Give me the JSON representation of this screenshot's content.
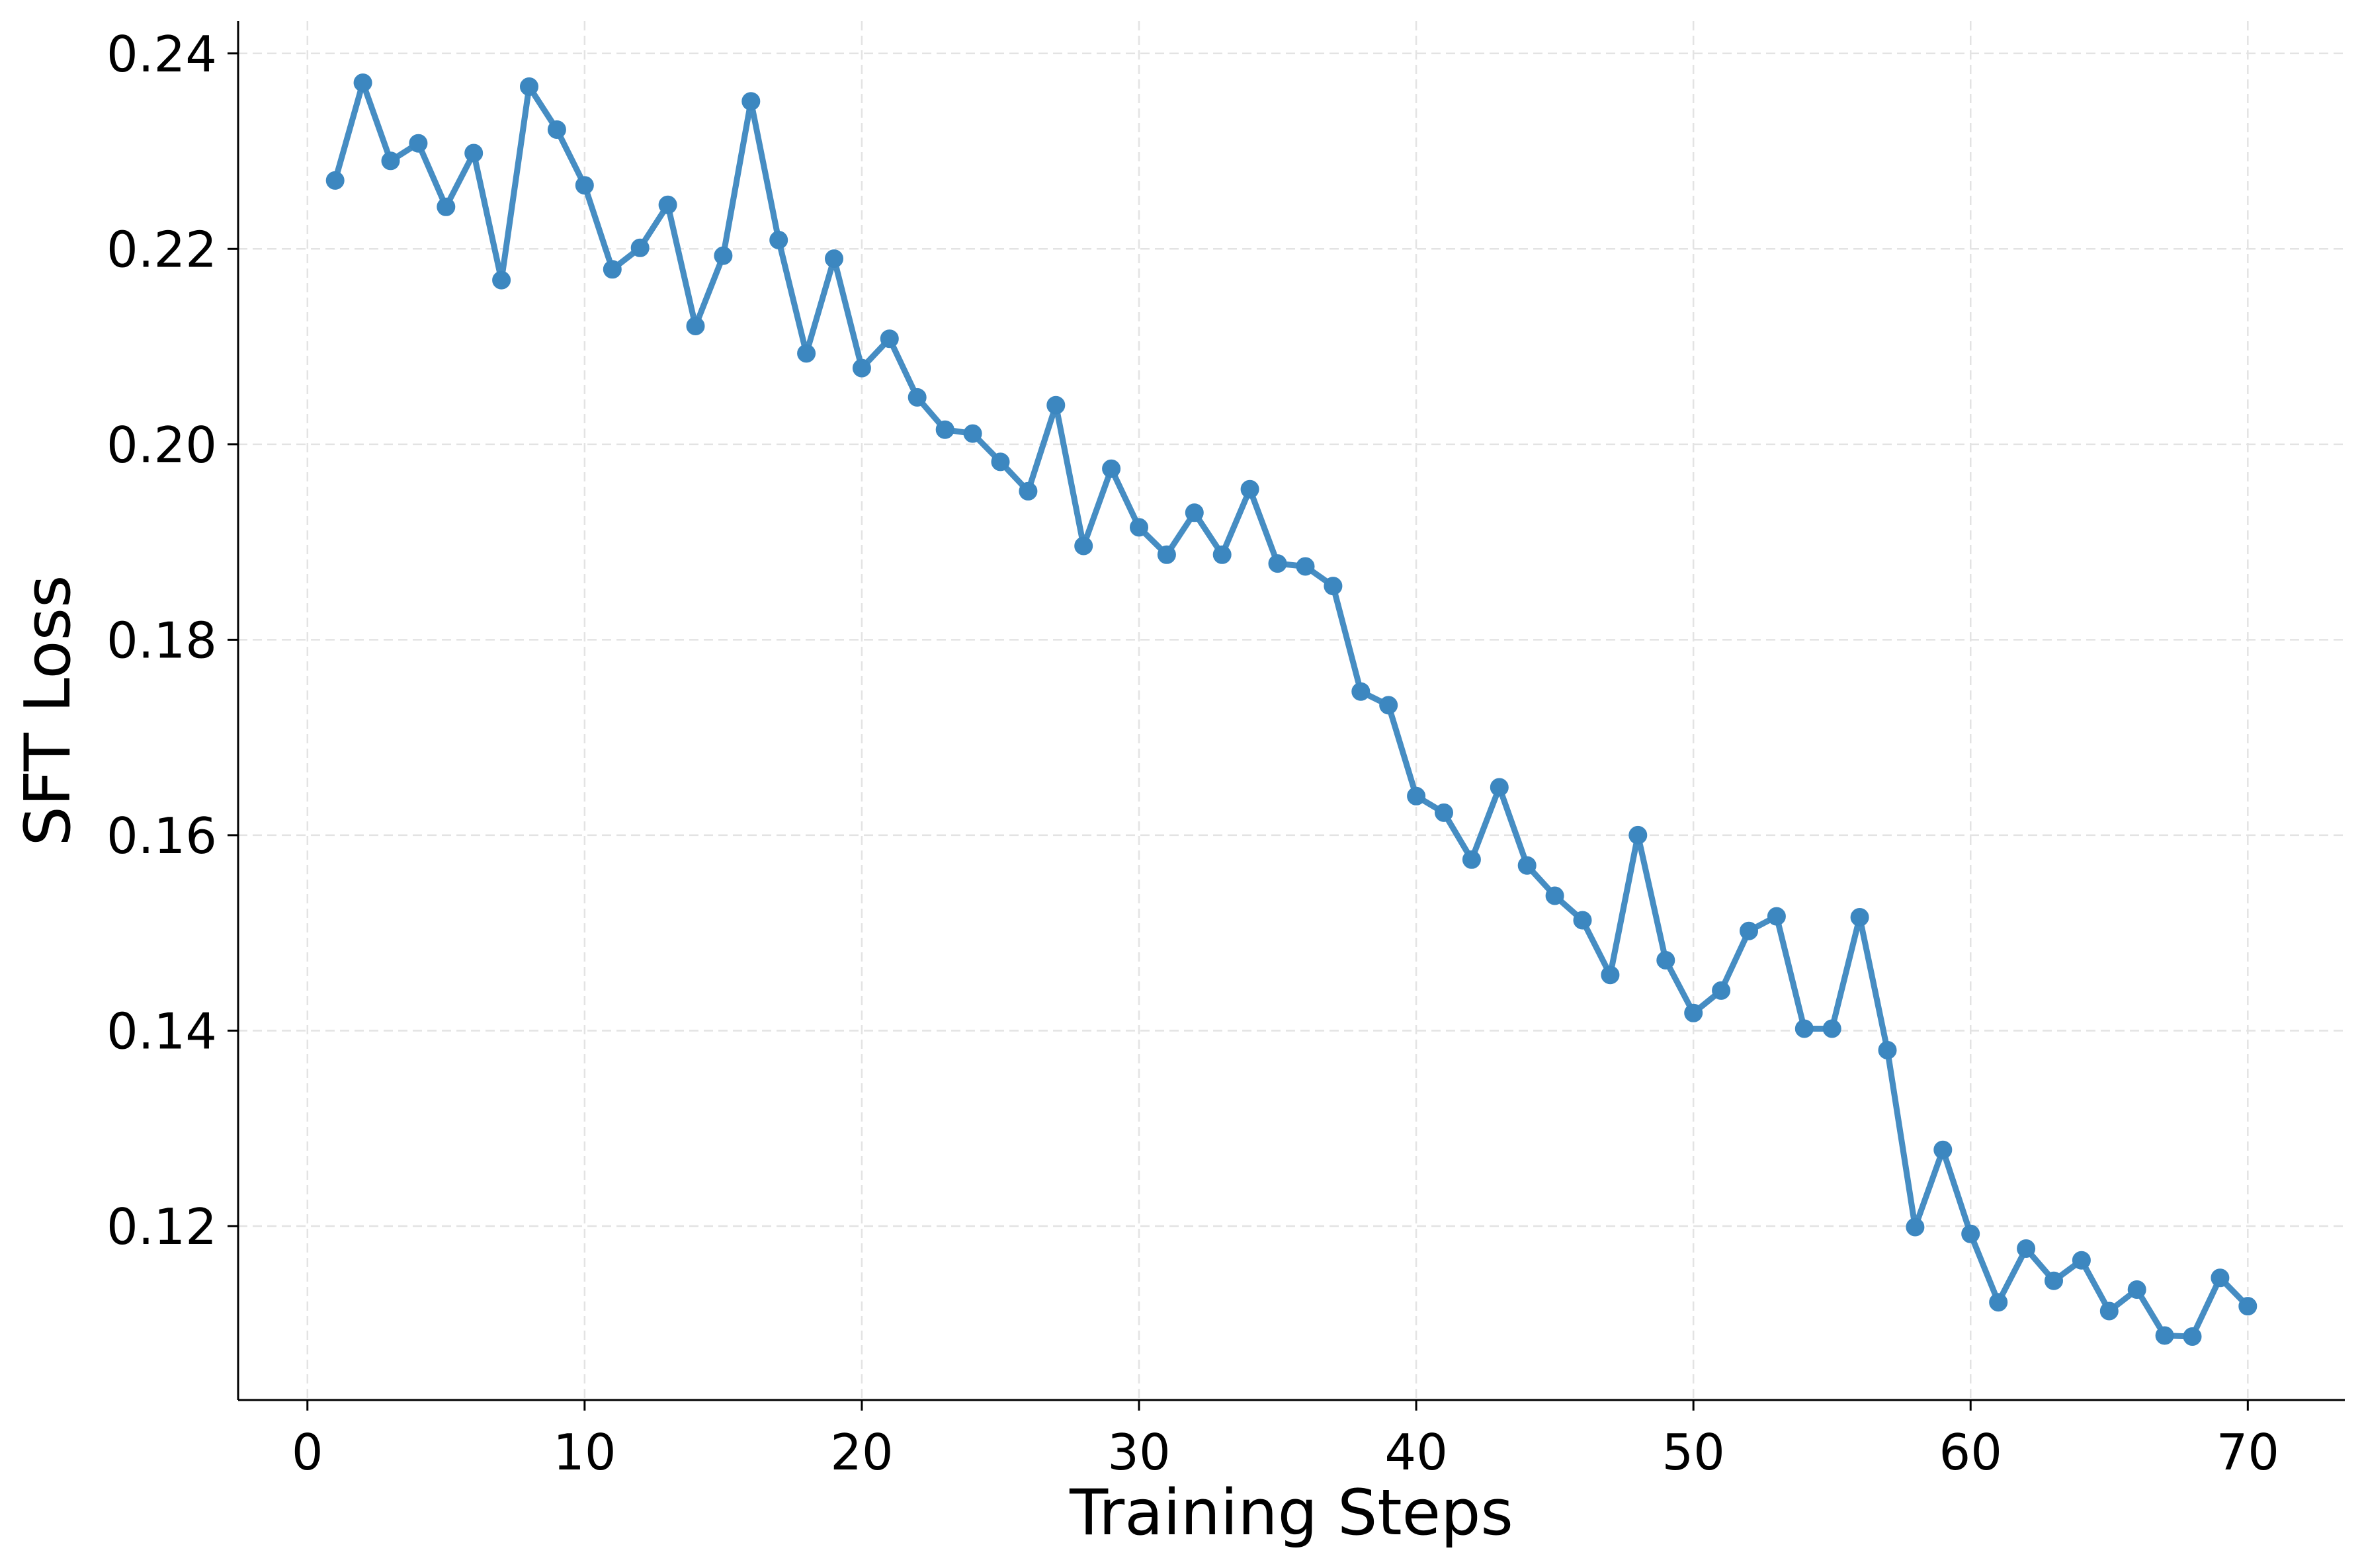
{
  "chart_data": {
    "type": "line",
    "title": "",
    "xlabel": "Training Steps",
    "ylabel": "SFT Loss",
    "xlim": [
      -2.5,
      73.5
    ],
    "ylim": [
      0.1022,
      0.2433
    ],
    "xticks": [
      0,
      10,
      20,
      30,
      40,
      50,
      60,
      70
    ],
    "xtick_labels": [
      "0",
      "10",
      "20",
      "30",
      "40",
      "50",
      "60",
      "70"
    ],
    "yticks": [
      0.12,
      0.14,
      0.16,
      0.18,
      0.2,
      0.22,
      0.24
    ],
    "ytick_labels": [
      "0.12",
      "0.14",
      "0.16",
      "0.18",
      "0.20",
      "0.22",
      "0.24"
    ],
    "grid": true,
    "series": [
      {
        "color": "#3c87c0",
        "marker": "circle",
        "x": [
          1,
          2,
          3,
          4,
          5,
          6,
          7,
          8,
          9,
          10,
          11,
          12,
          13,
          14,
          15,
          16,
          17,
          18,
          19,
          20,
          21,
          22,
          23,
          24,
          25,
          26,
          27,
          28,
          29,
          30,
          31,
          32,
          33,
          34,
          35,
          36,
          37,
          38,
          39,
          40,
          41,
          42,
          43,
          44,
          45,
          46,
          47,
          48,
          49,
          50,
          51,
          52,
          53,
          54,
          55,
          56,
          57,
          58,
          59,
          60,
          61,
          62,
          63,
          64,
          65,
          66,
          67,
          68,
          69,
          70
        ],
        "y": [
          0.227,
          0.237,
          0.229,
          0.2308,
          0.2243,
          0.2298,
          0.2168,
          0.2366,
          0.2322,
          0.2265,
          0.2179,
          0.2201,
          0.2245,
          0.2121,
          0.2193,
          0.2351,
          0.2209,
          0.2093,
          0.219,
          0.2078,
          0.2108,
          0.2048,
          0.2015,
          0.2011,
          0.1982,
          0.1952,
          0.204,
          0.1896,
          0.1975,
          0.1915,
          0.1887,
          0.193,
          0.1887,
          0.1954,
          0.1878,
          0.1875,
          0.1855,
          0.1747,
          0.1733,
          0.164,
          0.1623,
          0.1575,
          0.1649,
          0.1569,
          0.1538,
          0.1513,
          0.1457,
          0.16,
          0.1472,
          0.1418,
          0.1441,
          0.1502,
          0.1517,
          0.1402,
          0.1402,
          0.1516,
          0.138,
          0.1199,
          0.1278,
          0.1192,
          0.1122,
          0.1177,
          0.1144,
          0.1165,
          0.1113,
          0.1135,
          0.1088,
          0.1087,
          0.1147,
          0.1118
        ]
      }
    ]
  }
}
